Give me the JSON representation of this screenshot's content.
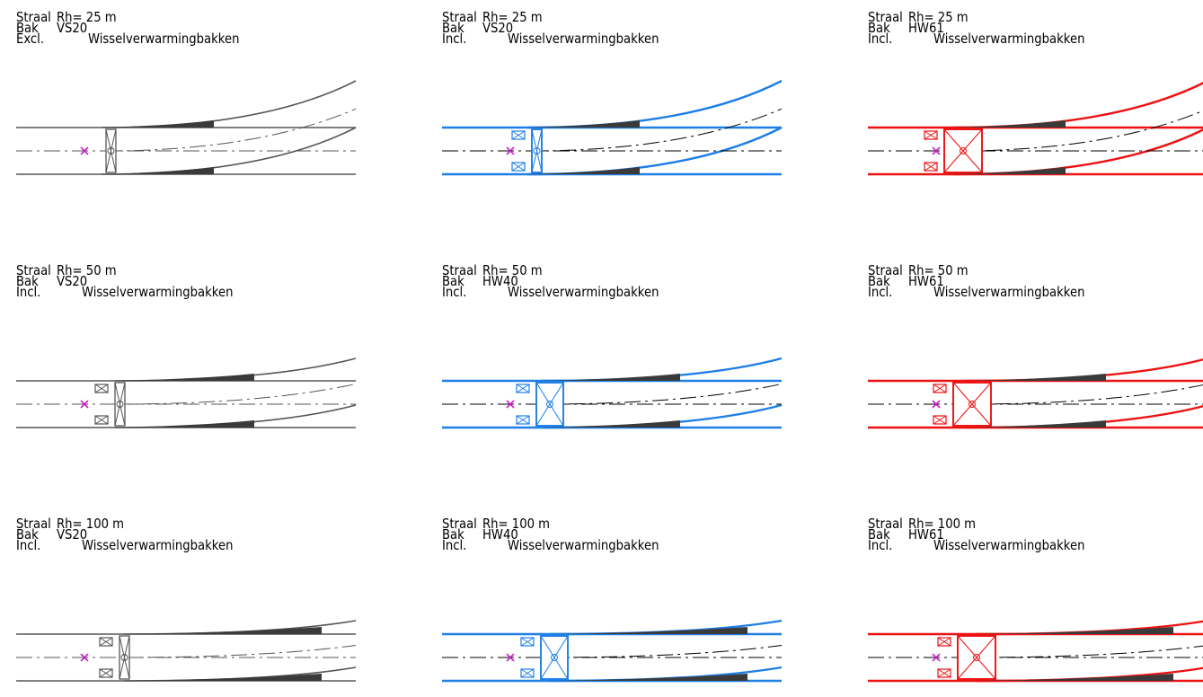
{
  "colors": {
    "grey": "#555555",
    "blue": "#1e7fe6",
    "red": "#ee1111",
    "marker": "#cc22cc",
    "black": "#000000"
  },
  "panels": [
    {
      "id": "r1c1",
      "color": "grey",
      "radius": "25 m",
      "bak": "VS20",
      "incl": "Excl.",
      "heating": "Wisselverwarmingbakken",
      "box": "VS20",
      "side_boxes": false
    },
    {
      "id": "r1c2",
      "color": "blue",
      "radius": "25 m",
      "bak": "VS20",
      "incl": "Incl.",
      "heating": "Wisselverwarmingbakken",
      "box": "VS20",
      "side_boxes": true
    },
    {
      "id": "r1c3",
      "color": "red",
      "radius": "25 m",
      "bak": "HW61",
      "incl": "Incl.",
      "heating": "Wisselverwarmingbakken",
      "box": "HW61",
      "side_boxes": true
    },
    {
      "id": "r2c1",
      "color": "grey",
      "radius": "50 m",
      "bak": "VS20",
      "incl": "Incl.",
      "heating": "Wisselverwarmingbakken",
      "box": "VS20",
      "side_boxes": true
    },
    {
      "id": "r2c2",
      "color": "blue",
      "radius": "50 m",
      "bak": "HW40",
      "incl": "Incl.",
      "heating": "Wisselverwarmingbakken",
      "box": "HW40",
      "side_boxes": true
    },
    {
      "id": "r2c3",
      "color": "red",
      "radius": "50 m",
      "bak": "HW61",
      "incl": "Incl.",
      "heating": "Wisselverwarmingbakken",
      "box": "HW61",
      "side_boxes": true
    },
    {
      "id": "r3c1",
      "color": "grey",
      "radius": "100 m",
      "bak": "VS20",
      "incl": "Incl.",
      "heating": "Wisselverwarmingbakken",
      "box": "VS20",
      "side_boxes": true
    },
    {
      "id": "r3c2",
      "color": "blue",
      "radius": "100 m",
      "bak": "HW40",
      "incl": "Incl.",
      "heating": "Wisselverwarmingbakken",
      "box": "HW40",
      "side_boxes": true
    },
    {
      "id": "r3c3",
      "color": "red",
      "radius": "100 m",
      "bak": "HW61",
      "incl": "Incl.",
      "heating": "Wisselverwarmingbakken",
      "box": "HW61",
      "side_boxes": true
    }
  ],
  "label_words": {
    "straal": "Straal",
    "rh": "Rh= ",
    "bak": "Bak"
  }
}
